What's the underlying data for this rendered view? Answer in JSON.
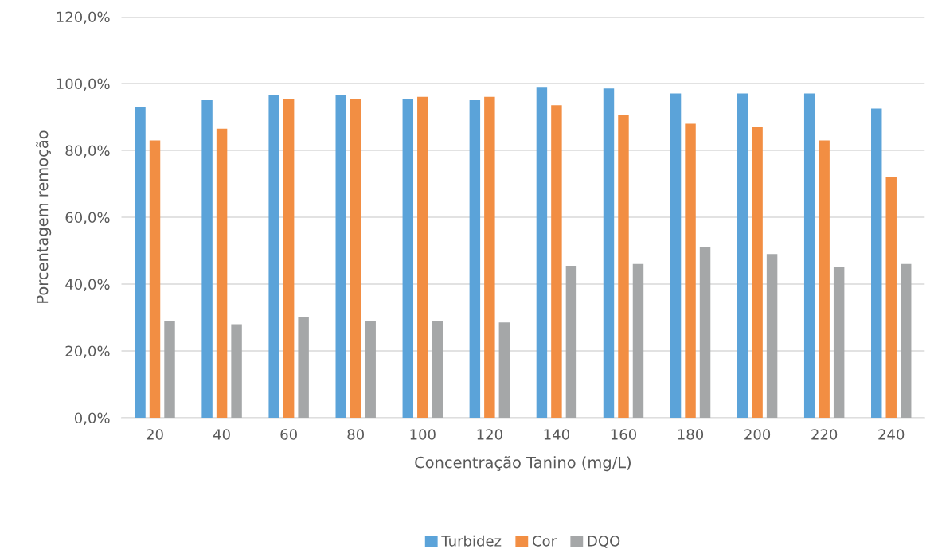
{
  "chart_data": {
    "type": "bar",
    "xlabel": "Concentração Tanino (mg/L)",
    "ylabel": "Porcentagem remoção",
    "categories": [
      "20",
      "40",
      "60",
      "80",
      "100",
      "120",
      "140",
      "160",
      "180",
      "200",
      "220",
      "240"
    ],
    "series": [
      {
        "name": "Turbidez",
        "color": "#5ba3d9",
        "values": [
          93,
          95,
          96.5,
          96.5,
          95.5,
          95,
          99,
          98.5,
          97,
          97,
          97,
          92.5
        ]
      },
      {
        "name": "Cor",
        "color": "#f28e43",
        "values": [
          83,
          86.5,
          95.5,
          95.5,
          96,
          96,
          93.5,
          90.5,
          88,
          87,
          83,
          72
        ]
      },
      {
        "name": "DQO",
        "color": "#a5a7a8",
        "values": [
          29,
          28,
          30,
          29,
          29,
          28.5,
          45.5,
          46,
          51,
          49,
          45,
          46
        ]
      }
    ],
    "ylim": [
      0,
      120
    ],
    "yticks": [
      {
        "value": 0,
        "label": "0,0%"
      },
      {
        "value": 20,
        "label": "20,0%"
      },
      {
        "value": 40,
        "label": "40,0%"
      },
      {
        "value": 60,
        "label": "60,0%"
      },
      {
        "value": 80,
        "label": "80,0%"
      },
      {
        "value": 100,
        "label": "100,0%"
      },
      {
        "value": 120,
        "label": "120,0%"
      }
    ],
    "grid": "y",
    "legend": "bottom"
  }
}
